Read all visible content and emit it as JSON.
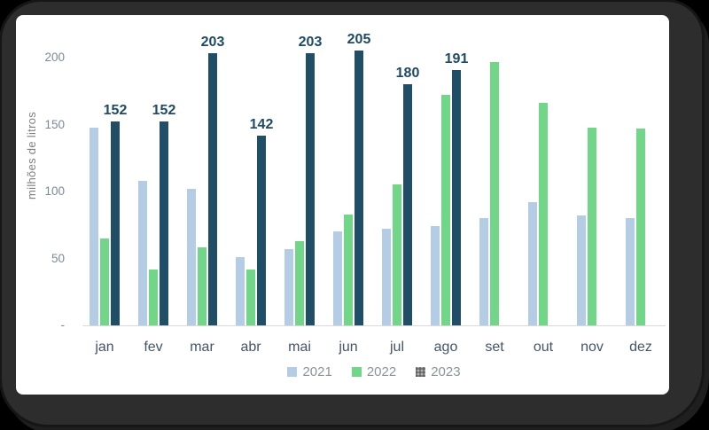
{
  "chart_data": {
    "type": "bar",
    "title": "",
    "xlabel": "",
    "ylabel": "milhões de litros",
    "categories": [
      "jan",
      "fev",
      "mar",
      "abr",
      "mai",
      "jun",
      "jul",
      "ago",
      "set",
      "out",
      "nov",
      "dez"
    ],
    "series": [
      {
        "name": "2021",
        "color": "#b5cde4",
        "legend_marker_color": "#b5cde4",
        "legend_marker_patterned": false,
        "data_labels": false,
        "values": [
          148,
          108,
          102,
          51,
          57,
          70,
          72,
          74,
          80,
          92,
          82,
          80
        ]
      },
      {
        "name": "2022",
        "color": "#72d688",
        "legend_marker_color": "#72d688",
        "legend_marker_patterned": false,
        "data_labels": false,
        "values": [
          65,
          42,
          58,
          42,
          63,
          83,
          105,
          172,
          197,
          166,
          148,
          147
        ]
      },
      {
        "name": "2023",
        "color": "#1f4e66",
        "legend_marker_color": "#a6a6a6",
        "legend_marker_patterned": true,
        "data_labels": true,
        "values": [
          152,
          152,
          203,
          142,
          203,
          205,
          180,
          191,
          null,
          null,
          null,
          null
        ]
      }
    ],
    "y_axis": {
      "max": 220,
      "ticks": [
        {
          "value": 200,
          "label": "200"
        },
        {
          "value": 150,
          "label": "150"
        },
        {
          "value": 100,
          "label": "100"
        },
        {
          "value": 50,
          "label": "50"
        },
        {
          "value": 0,
          "label": "-"
        }
      ]
    },
    "grid": false,
    "legend_position": "bottom"
  },
  "colors": {
    "background": "#000000",
    "window_frame": "#2d2d2d",
    "card": "#ffffff",
    "axis_line": "#d9d9d9",
    "tick_text": "#7b8997",
    "month_text": "#44546a",
    "value_label_text": "#1f4a66",
    "legend_text": "#8a939c",
    "ylabel_text": "#7f7f7f"
  }
}
